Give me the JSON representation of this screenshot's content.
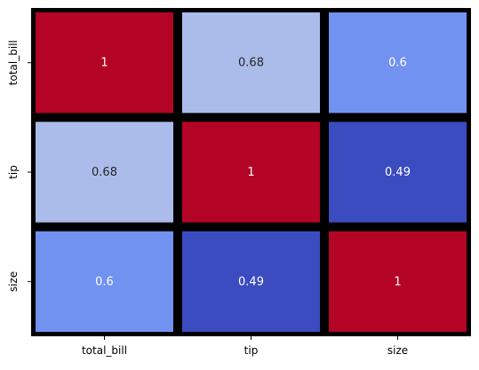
{
  "chart_data": {
    "type": "heatmap",
    "title": "",
    "xlabel": "",
    "ylabel": "",
    "x_categories": [
      "total_bill",
      "tip",
      "size"
    ],
    "y_categories": [
      "total_bill",
      "tip",
      "size"
    ],
    "values": [
      [
        1.0,
        0.68,
        0.6
      ],
      [
        0.68,
        1.0,
        0.49
      ],
      [
        0.6,
        0.49,
        1.0
      ]
    ],
    "annotations": [
      [
        "1",
        "0.68",
        "0.6"
      ],
      [
        "0.68",
        "1",
        "0.49"
      ],
      [
        "0.6",
        "0.49",
        "1"
      ]
    ],
    "value_range": [
      0.49,
      1.0
    ],
    "colormap": "coolwarm",
    "colorbar": false,
    "cell_border_color": "#000000",
    "colors": {
      "low": "#3b4cc0",
      "mid": "#dddddd",
      "high": "#b40426"
    }
  }
}
